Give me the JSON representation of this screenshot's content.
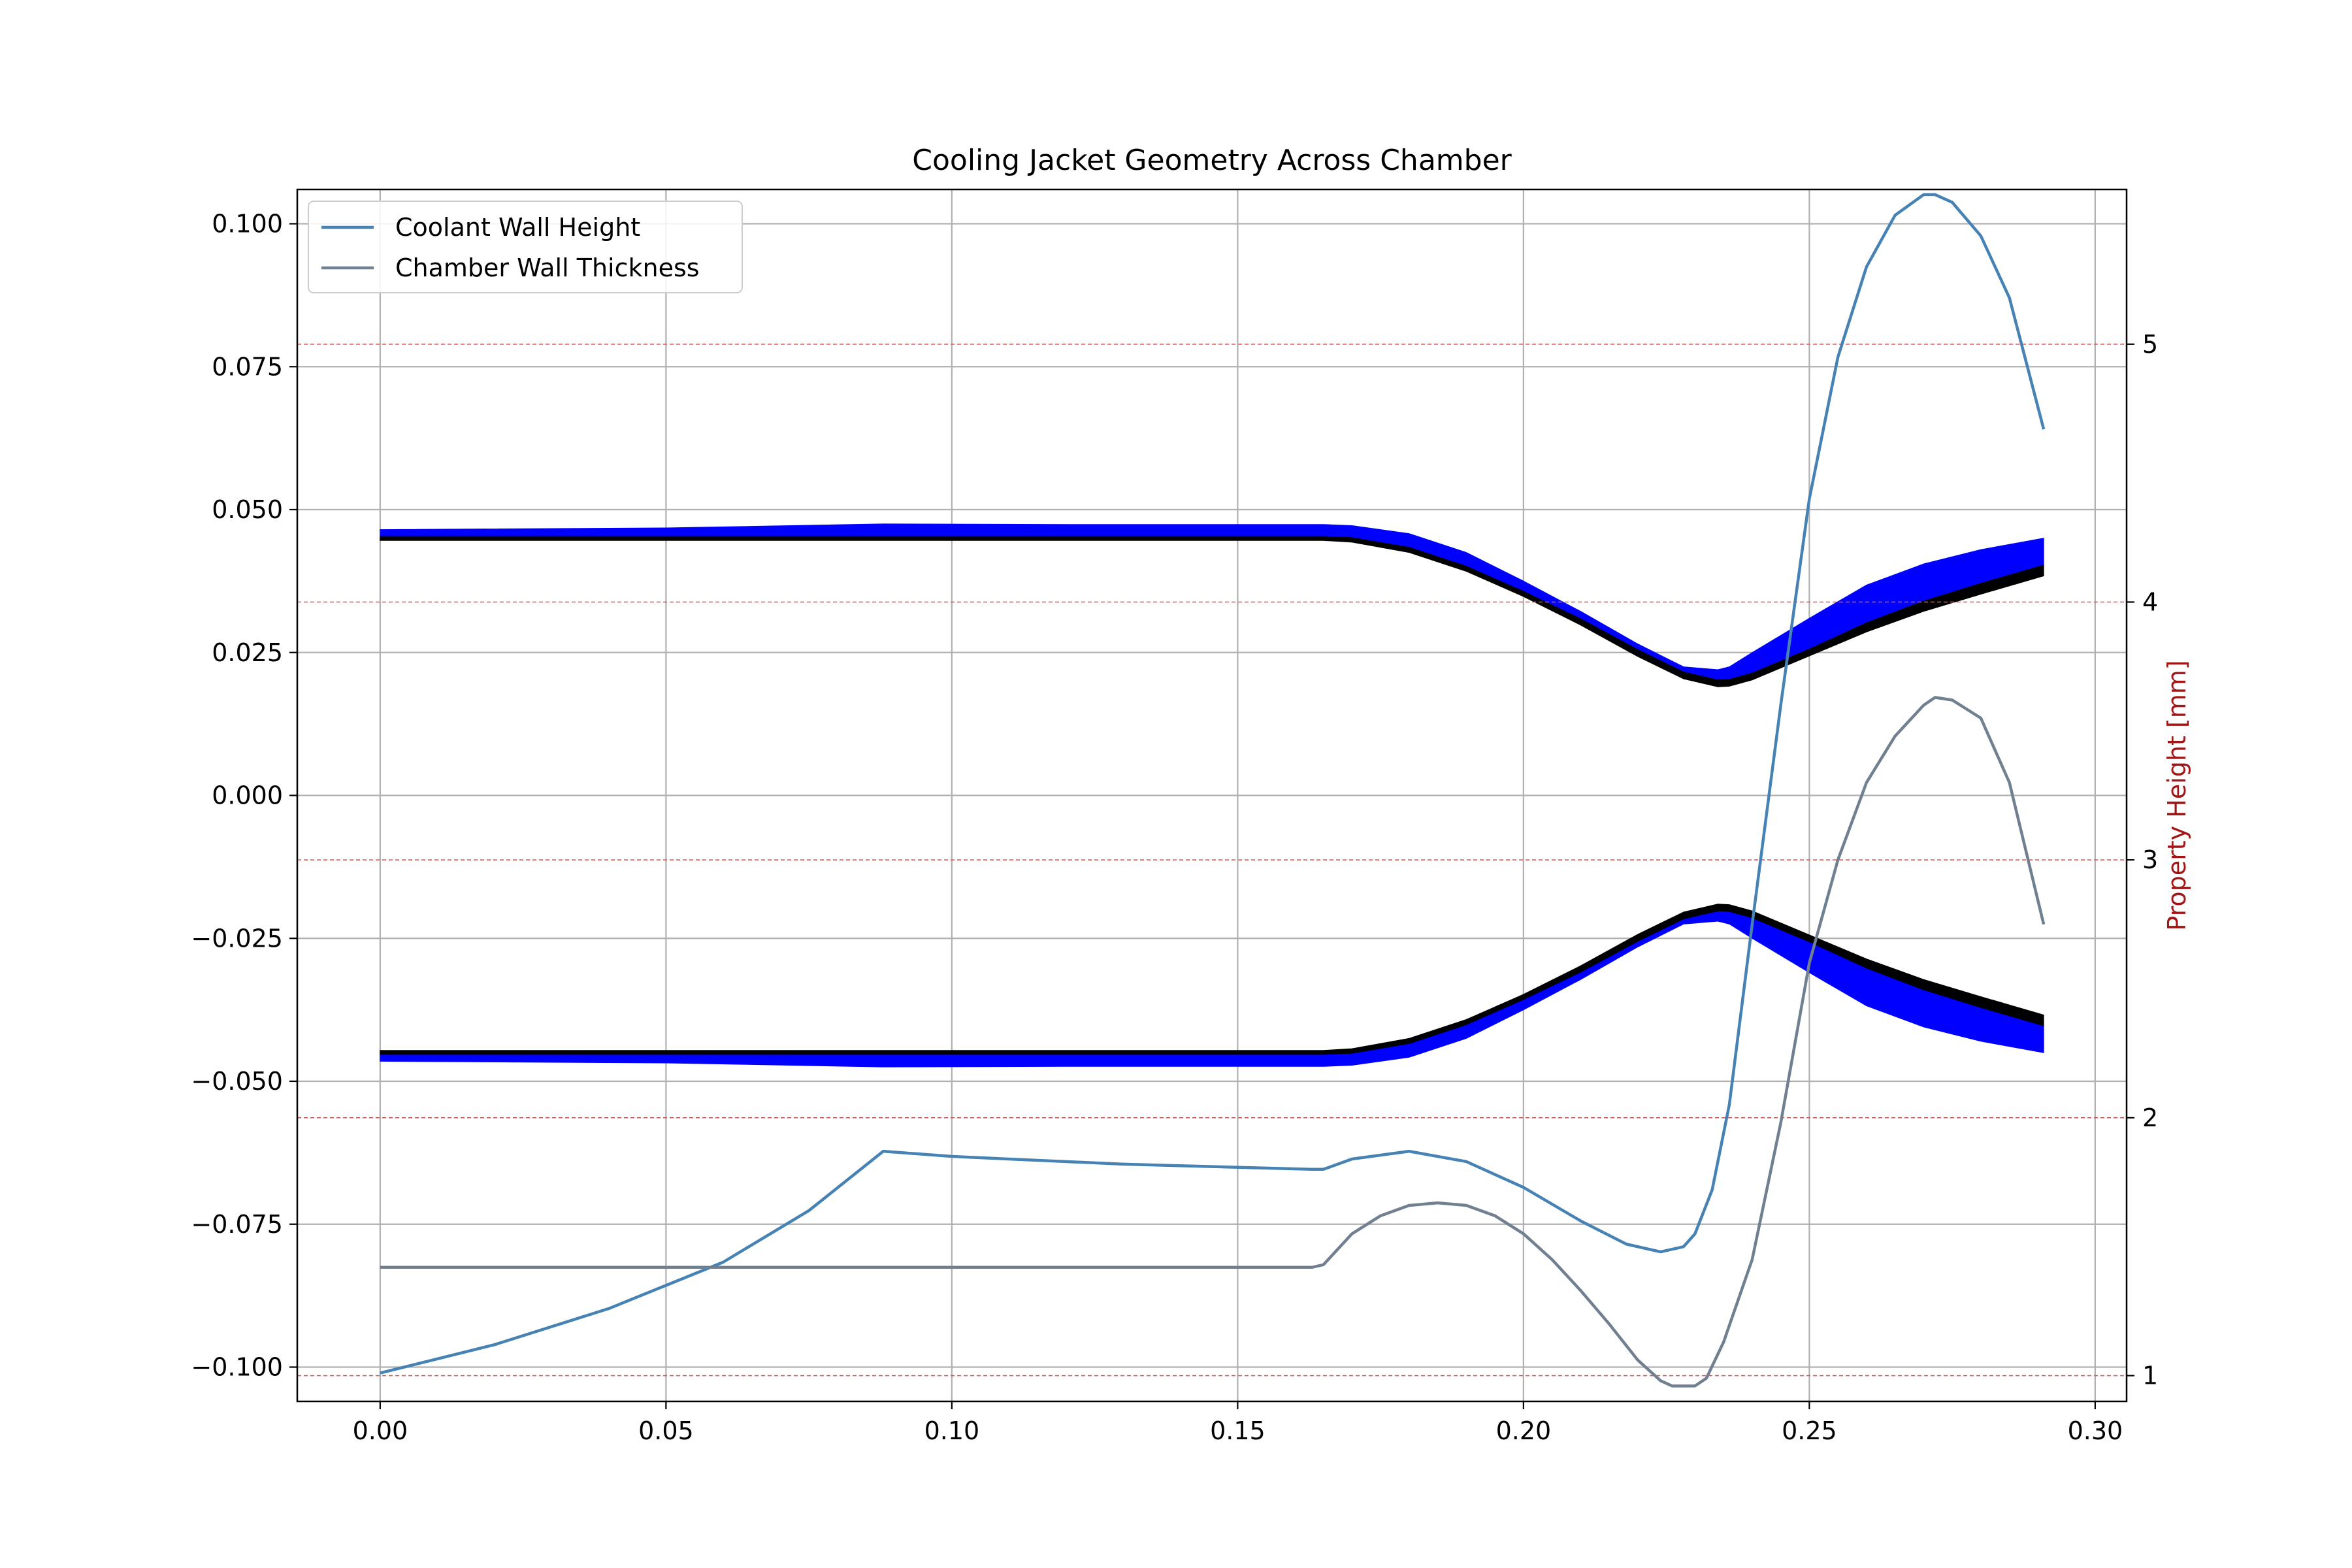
{
  "chart_data": {
    "type": "line",
    "title": "Cooling Jacket Geometry Across Chamber",
    "xlabel": "",
    "ylabel": "",
    "y2label": "Property Height [mm]",
    "xlim": [
      -0.0145,
      0.3055
    ],
    "ylim": [
      -0.106,
      0.106
    ],
    "y2lim": [
      0.9,
      5.6
    ],
    "x_ticks": [
      "0.00",
      "0.05",
      "0.10",
      "0.15",
      "0.20",
      "0.25",
      "0.30"
    ],
    "x_tick_values": [
      0.0,
      0.05,
      0.1,
      0.15,
      0.2,
      0.25,
      0.3
    ],
    "y_ticks": [
      "0.100",
      "0.075",
      "0.050",
      "0.025",
      "0.000",
      "−0.025",
      "−0.050",
      "−0.075",
      "−0.100"
    ],
    "y_tick_values": [
      0.1,
      0.075,
      0.05,
      0.025,
      0.0,
      -0.025,
      -0.05,
      -0.075,
      -0.1
    ],
    "y2_ticks": [
      "1",
      "2",
      "3",
      "4",
      "5"
    ],
    "y2_tick_values": [
      1,
      2,
      3,
      4,
      5
    ],
    "grid": true,
    "legend_position": "upper-left",
    "colors": {
      "coolant": "#4682b4",
      "chamber": "#708090",
      "jacket_fill": "#0000ff",
      "wall_fill": "#000000",
      "ref_lines": "#cd5c5c",
      "y2label": "#a01616"
    },
    "contour": {
      "x": [
        0.0,
        0.05,
        0.088,
        0.12,
        0.165,
        0.17,
        0.18,
        0.19,
        0.2,
        0.21,
        0.22,
        0.228,
        0.234,
        0.236,
        0.24,
        0.25,
        0.26,
        0.27,
        0.28,
        0.291
      ],
      "wall_inner": [
        0.0446,
        0.0446,
        0.0446,
        0.0446,
        0.0446,
        0.0443,
        0.0425,
        0.0392,
        0.0348,
        0.0298,
        0.0243,
        0.0204,
        0.019,
        0.0191,
        0.0202,
        0.0244,
        0.0286,
        0.0322,
        0.0352,
        0.0384
      ],
      "wall_outer": [
        0.0453,
        0.0453,
        0.0453,
        0.0453,
        0.0453,
        0.0451,
        0.0434,
        0.0401,
        0.0357,
        0.0309,
        0.0255,
        0.0216,
        0.0202,
        0.0203,
        0.0214,
        0.0256,
        0.0302,
        0.034,
        0.0371,
        0.0403
      ],
      "jacket_outer": [
        0.0465,
        0.0468,
        0.0475,
        0.0474,
        0.0474,
        0.0472,
        0.0458,
        0.0425,
        0.0375,
        0.0322,
        0.0265,
        0.0225,
        0.022,
        0.0225,
        0.025,
        0.031,
        0.0368,
        0.0405,
        0.043,
        0.045
      ]
    },
    "series": [
      {
        "name": "Coolant Wall Height",
        "axis": "right",
        "x": [
          0.0,
          0.02,
          0.04,
          0.06,
          0.075,
          0.088,
          0.1,
          0.13,
          0.163,
          0.165,
          0.17,
          0.18,
          0.19,
          0.2,
          0.21,
          0.218,
          0.224,
          0.228,
          0.23,
          0.233,
          0.236,
          0.24,
          0.245,
          0.25,
          0.255,
          0.26,
          0.265,
          0.27,
          0.272,
          0.275,
          0.28,
          0.285,
          0.291
        ],
        "values": [
          1.01,
          1.12,
          1.26,
          1.44,
          1.64,
          1.87,
          1.85,
          1.82,
          1.8,
          1.8,
          1.84,
          1.87,
          1.83,
          1.73,
          1.6,
          1.51,
          1.48,
          1.5,
          1.55,
          1.72,
          2.05,
          2.75,
          3.6,
          4.4,
          4.95,
          5.3,
          5.5,
          5.58,
          5.58,
          5.55,
          5.42,
          5.18,
          4.67
        ]
      },
      {
        "name": "Chamber Wall Thickness",
        "axis": "right",
        "x": [
          0.0,
          0.1,
          0.163,
          0.165,
          0.17,
          0.175,
          0.18,
          0.185,
          0.19,
          0.195,
          0.2,
          0.205,
          0.21,
          0.215,
          0.22,
          0.224,
          0.226,
          0.228,
          0.23,
          0.232,
          0.235,
          0.24,
          0.245,
          0.25,
          0.255,
          0.26,
          0.265,
          0.27,
          0.272,
          0.275,
          0.28,
          0.285,
          0.291
        ],
        "values": [
          1.42,
          1.42,
          1.42,
          1.43,
          1.55,
          1.62,
          1.66,
          1.67,
          1.66,
          1.62,
          1.55,
          1.45,
          1.33,
          1.2,
          1.06,
          0.98,
          0.96,
          0.96,
          0.96,
          0.99,
          1.13,
          1.45,
          1.98,
          2.6,
          3.0,
          3.3,
          3.48,
          3.6,
          3.63,
          3.62,
          3.55,
          3.3,
          2.75
        ]
      }
    ],
    "reference_lines_y2": [
      1,
      2,
      3,
      4,
      5
    ]
  }
}
